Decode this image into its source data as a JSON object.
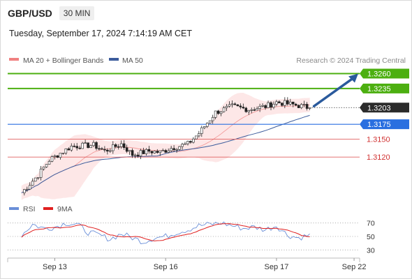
{
  "header": {
    "pair": "GBP/USD",
    "timeframe": "30 MIN",
    "datetime": "Tuesday, September 17, 2024 7:14:19 AM CET",
    "credit": "Research © 2024 Trading Central"
  },
  "legend": {
    "bollinger": "MA 20 + Bollinger Bands",
    "ma50": "MA 50",
    "rsi": "RSI",
    "rsi_ma": "9MA"
  },
  "colors": {
    "up_candle": "#ffffff",
    "down_candle": "#222222",
    "bollinger": "#f08080",
    "bollinger_fill": "#fde3e3",
    "ma50": "#3c5c9c",
    "target_green": "#4caf10",
    "pivot_blue": "#2a6fe0",
    "support_red": "#e06060",
    "rsi_line": "#6a8fd8",
    "rsi_ma": "#e02020",
    "arrow": "#2a5a9c"
  },
  "chart_data": {
    "type": "candlestick",
    "symbol": "GBP/USD",
    "interval": "30 MIN",
    "price_range": [
      1.305,
      1.327
    ],
    "x_ticks": [
      "Sep 13",
      "Sep 16",
      "Sep 17",
      "Sep 22"
    ],
    "x_tick_positions": [
      12,
      52,
      92,
      120
    ],
    "x_range": [
      -5,
      122
    ],
    "last_price": 1.3203,
    "levels": [
      {
        "value": 1.326,
        "label": "1.3260",
        "kind": "resistance"
      },
      {
        "value": 1.3235,
        "label": "1.3235",
        "kind": "resistance"
      },
      {
        "value": 1.3175,
        "label": "1.3175",
        "kind": "pivot"
      },
      {
        "value": 1.315,
        "label": "1.3150",
        "kind": "support"
      },
      {
        "value": 1.312,
        "label": "1.3120",
        "kind": "support"
      }
    ],
    "close_anchors": [
      [
        0,
        1.306
      ],
      [
        6,
        1.309
      ],
      [
        10,
        1.3115
      ],
      [
        18,
        1.3138
      ],
      [
        26,
        1.314
      ],
      [
        30,
        1.313
      ],
      [
        36,
        1.3142
      ],
      [
        40,
        1.3124
      ],
      [
        46,
        1.313
      ],
      [
        50,
        1.3128
      ],
      [
        54,
        1.3135
      ],
      [
        60,
        1.3142
      ],
      [
        64,
        1.316
      ],
      [
        70,
        1.3195
      ],
      [
        76,
        1.3205
      ],
      [
        82,
        1.32
      ],
      [
        88,
        1.3205
      ],
      [
        92,
        1.3212
      ],
      [
        98,
        1.3208
      ],
      [
        104,
        1.3203
      ]
    ],
    "rsi": {
      "levels": [
        70,
        50,
        30
      ],
      "range": [
        20,
        80
      ],
      "anchors": [
        [
          0,
          52
        ],
        [
          4,
          68
        ],
        [
          8,
          62
        ],
        [
          12,
          64
        ],
        [
          16,
          70
        ],
        [
          20,
          68
        ],
        [
          24,
          56
        ],
        [
          28,
          52
        ],
        [
          32,
          46
        ],
        [
          36,
          54
        ],
        [
          40,
          48
        ],
        [
          44,
          42
        ],
        [
          48,
          48
        ],
        [
          52,
          50
        ],
        [
          56,
          56
        ],
        [
          60,
          60
        ],
        [
          64,
          66
        ],
        [
          68,
          68
        ],
        [
          72,
          70
        ],
        [
          76,
          66
        ],
        [
          80,
          62
        ],
        [
          84,
          64
        ],
        [
          88,
          60
        ],
        [
          92,
          66
        ],
        [
          96,
          52
        ],
        [
          100,
          48
        ],
        [
          104,
          52
        ]
      ]
    }
  }
}
